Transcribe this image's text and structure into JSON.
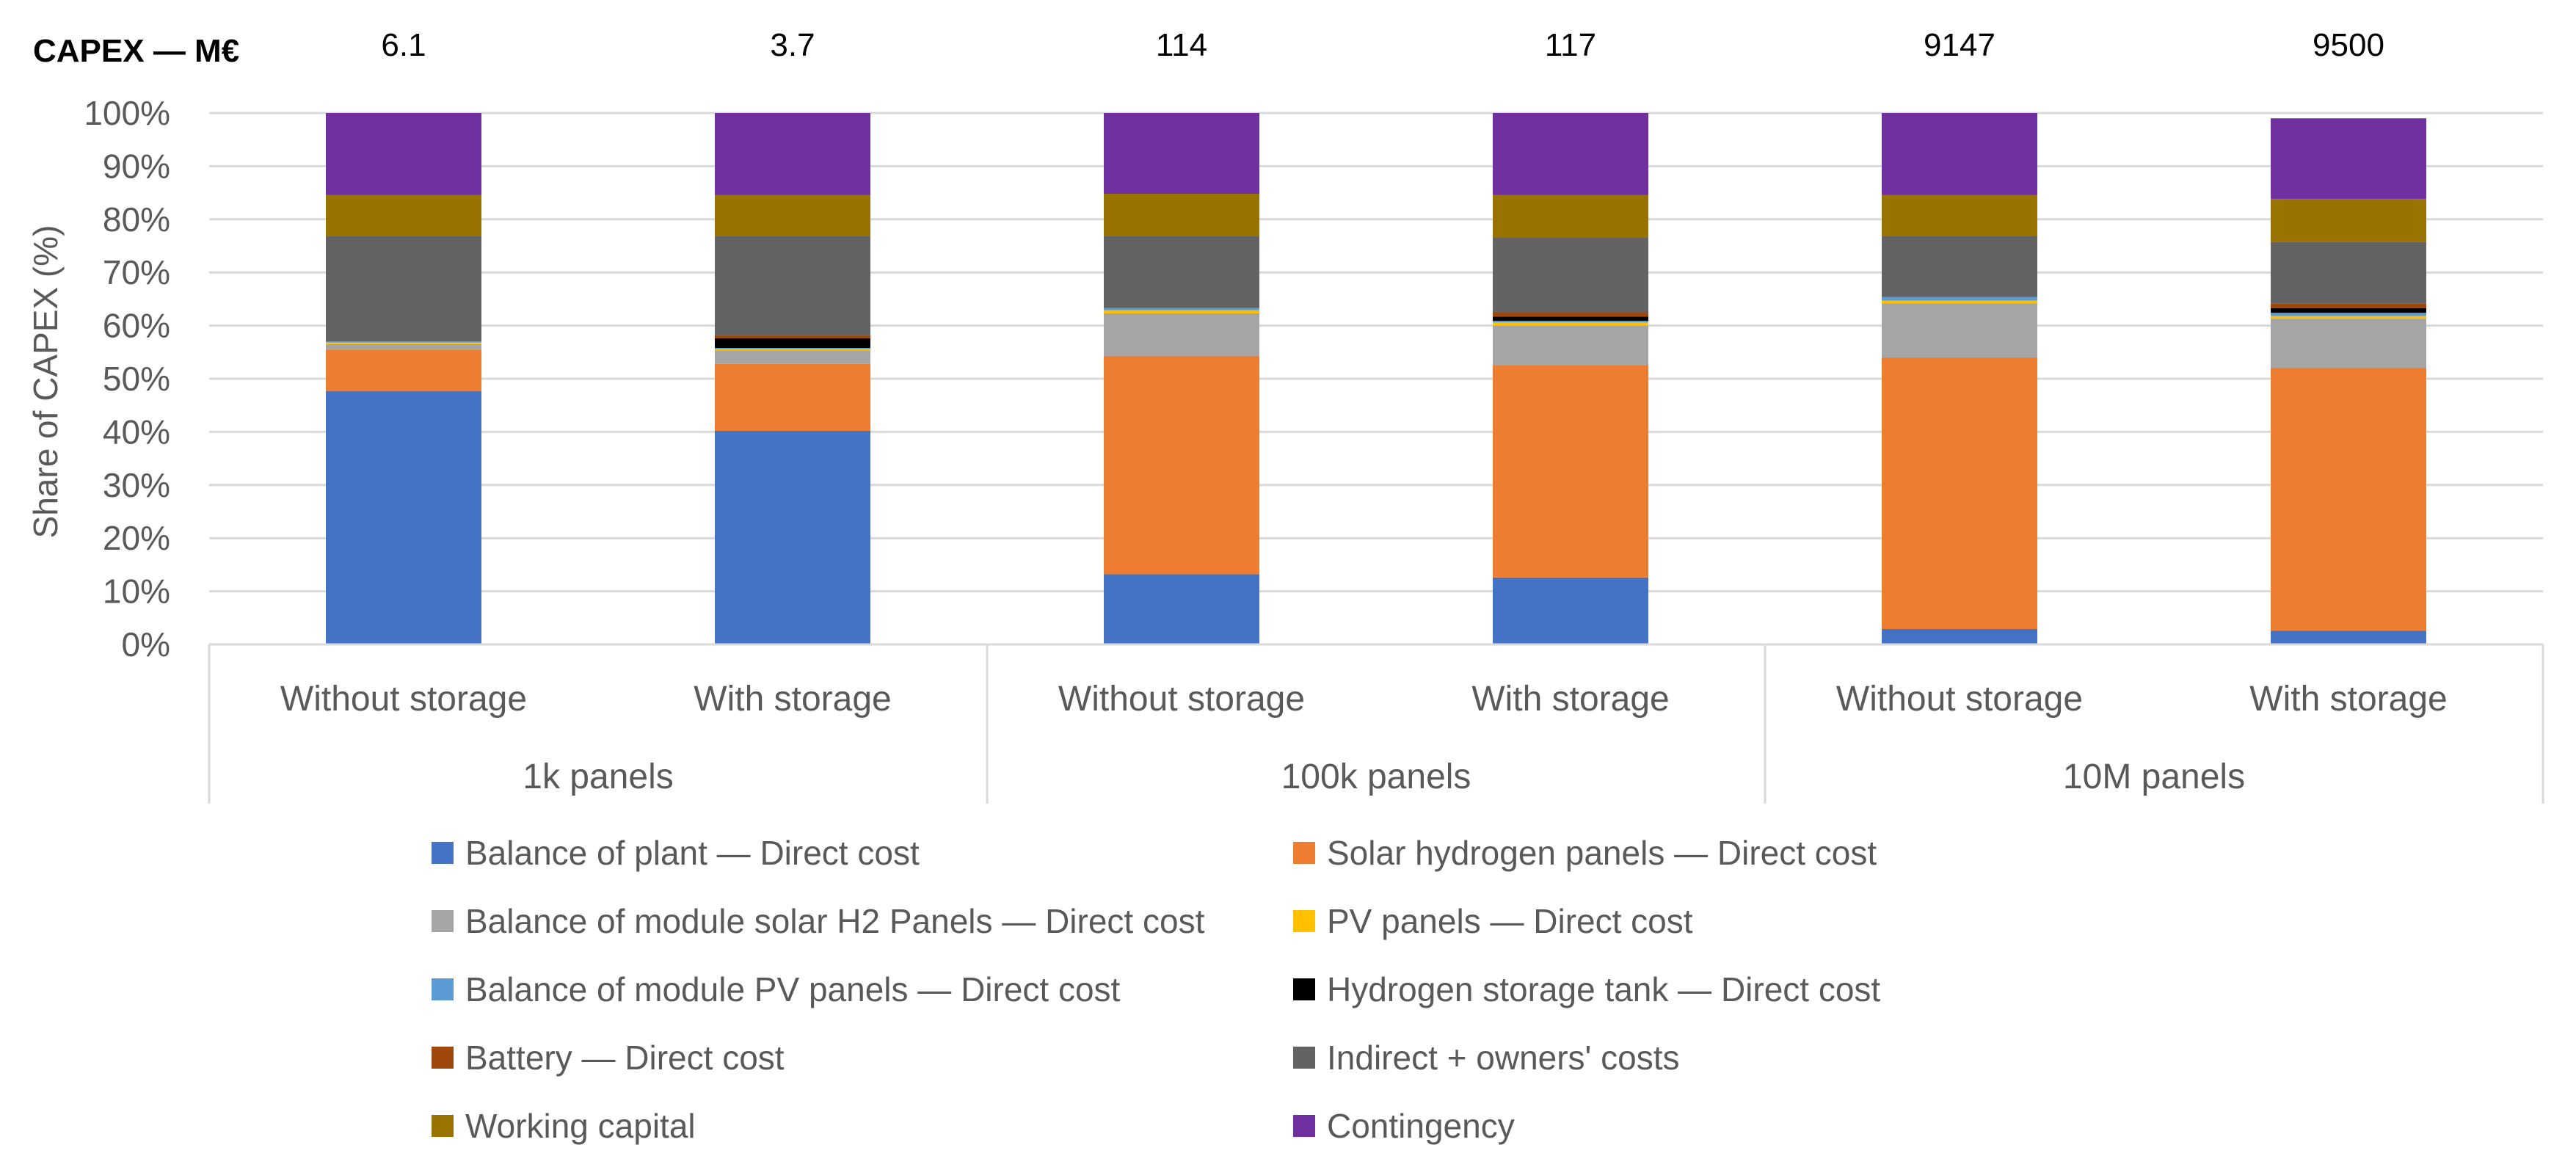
{
  "chart_data": {
    "type": "bar",
    "stacked": true,
    "percent": true,
    "title": "CAPEX — M€",
    "ylabel": "Share of CAPEX (%)",
    "ylim": [
      0,
      100
    ],
    "yticks": [
      "0%",
      "10%",
      "20%",
      "30%",
      "40%",
      "50%",
      "60%",
      "70%",
      "80%",
      "90%",
      "100%"
    ],
    "grid": true,
    "legend_position": "bottom",
    "groups": [
      "1k panels",
      "100k panels",
      "10M panels"
    ],
    "categories": [
      "Without storage",
      "With storage",
      "Without storage",
      "With storage",
      "Without storage",
      "With storage"
    ],
    "group_of_category": [
      0,
      0,
      1,
      1,
      2,
      2
    ],
    "capex_totals": [
      "6.1",
      "3.7",
      "114",
      "117",
      "9147",
      "9500"
    ],
    "series": [
      {
        "name": "Balance of plant — Direct cost",
        "color": "#4472C4",
        "values": [
          47.7,
          40.2,
          13.2,
          12.6,
          2.9,
          2.6
        ]
      },
      {
        "name": "Solar hydrogen panels — Direct cost",
        "color": "#ED7D31",
        "values": [
          7.8,
          12.6,
          41.1,
          40.0,
          51.1,
          49.4
        ]
      },
      {
        "name": "Balance of module solar H2 Panels — Direct cost",
        "color": "#A5A5A5",
        "values": [
          1.0,
          2.5,
          8.0,
          7.4,
          10.2,
          9.3
        ]
      },
      {
        "name": "PV panels — Direct cost",
        "color": "#FFC000",
        "values": [
          0.3,
          0.3,
          0.6,
          0.6,
          0.5,
          0.5
        ]
      },
      {
        "name": "Balance of module PV panels — Direct cost",
        "color": "#5B9BD5",
        "values": [
          0.2,
          0.2,
          0.4,
          0.3,
          0.7,
          0.6
        ]
      },
      {
        "name": "Hydrogen storage tank — Direct cost",
        "color": "#000000",
        "values": [
          0.0,
          1.8,
          0.0,
          0.8,
          0.0,
          0.9
        ]
      },
      {
        "name": "Battery — Direct cost",
        "color": "#9E480E",
        "values": [
          0.0,
          0.6,
          0.0,
          0.8,
          0.0,
          0.9
        ]
      },
      {
        "name": "Indirect + owners' costs",
        "color": "#636363",
        "values": [
          19.8,
          18.6,
          13.5,
          14.1,
          11.4,
          11.6
        ]
      },
      {
        "name": "Working capital",
        "color": "#997300",
        "values": [
          7.8,
          7.8,
          8.0,
          8.0,
          7.8,
          8.0
        ]
      },
      {
        "name": "Contingency",
        "color": "#7030A0",
        "values": [
          15.4,
          15.4,
          15.2,
          15.4,
          15.4,
          15.2
        ]
      }
    ]
  }
}
